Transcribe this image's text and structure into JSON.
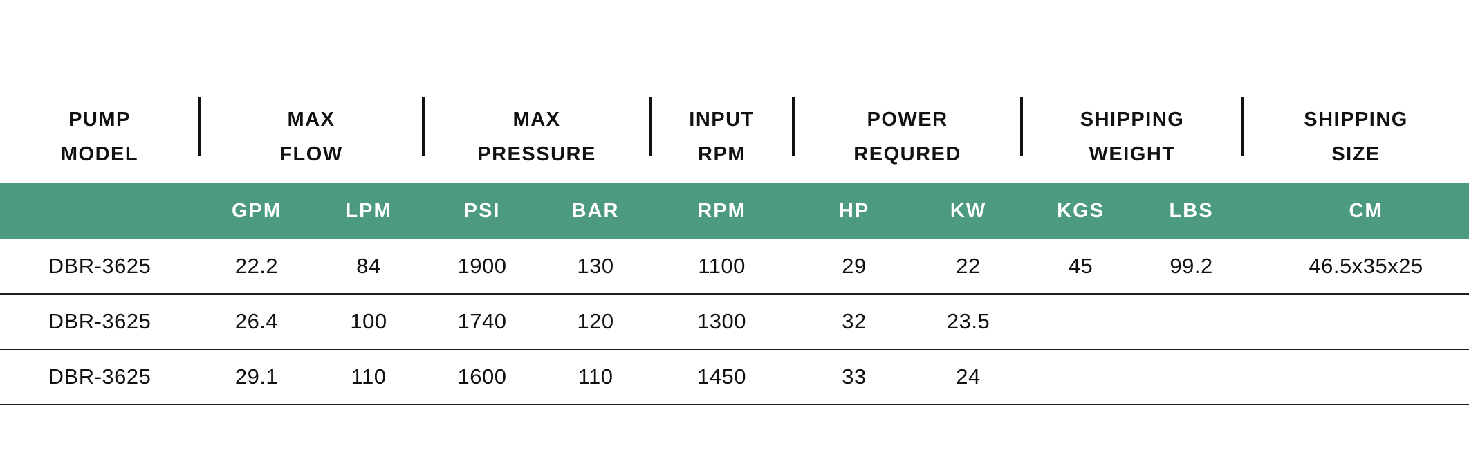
{
  "table": {
    "group_headers": [
      {
        "line1": "PUMP",
        "line2": "MODEL"
      },
      {
        "line1": "MAX",
        "line2": "FLOW"
      },
      {
        "line1": "MAX",
        "line2": "PRESSURE"
      },
      {
        "line1": "INPUT",
        "line2": "RPM"
      },
      {
        "line1": "POWER",
        "line2": "REQURED"
      },
      {
        "line1": "SHIPPING",
        "line2": "WEIGHT"
      },
      {
        "line1": "SHIPPING",
        "line2": "SIZE"
      }
    ],
    "unit_headers": [
      "",
      "GPM",
      "LPM",
      "PSI",
      "BAR",
      "RPM",
      "HP",
      "KW",
      "KGS",
      "LBS",
      "CM"
    ],
    "rows": [
      [
        "DBR-3625",
        "22.2",
        "84",
        "1900",
        "130",
        "1100",
        "29",
        "22",
        "45",
        "99.2",
        "46.5x35x25"
      ],
      [
        "DBR-3625",
        "26.4",
        "100",
        "1740",
        "120",
        "1300",
        "32",
        "23.5",
        "",
        "",
        ""
      ],
      [
        "DBR-3625",
        "29.1",
        "110",
        "1600",
        "110",
        "1450",
        "33",
        "24",
        "",
        "",
        ""
      ]
    ],
    "colors": {
      "units_band_background": "#4D9B7E",
      "units_band_text": "#FFFFFF",
      "header_text": "#111111",
      "row_divider": "#1E1E1E"
    }
  }
}
